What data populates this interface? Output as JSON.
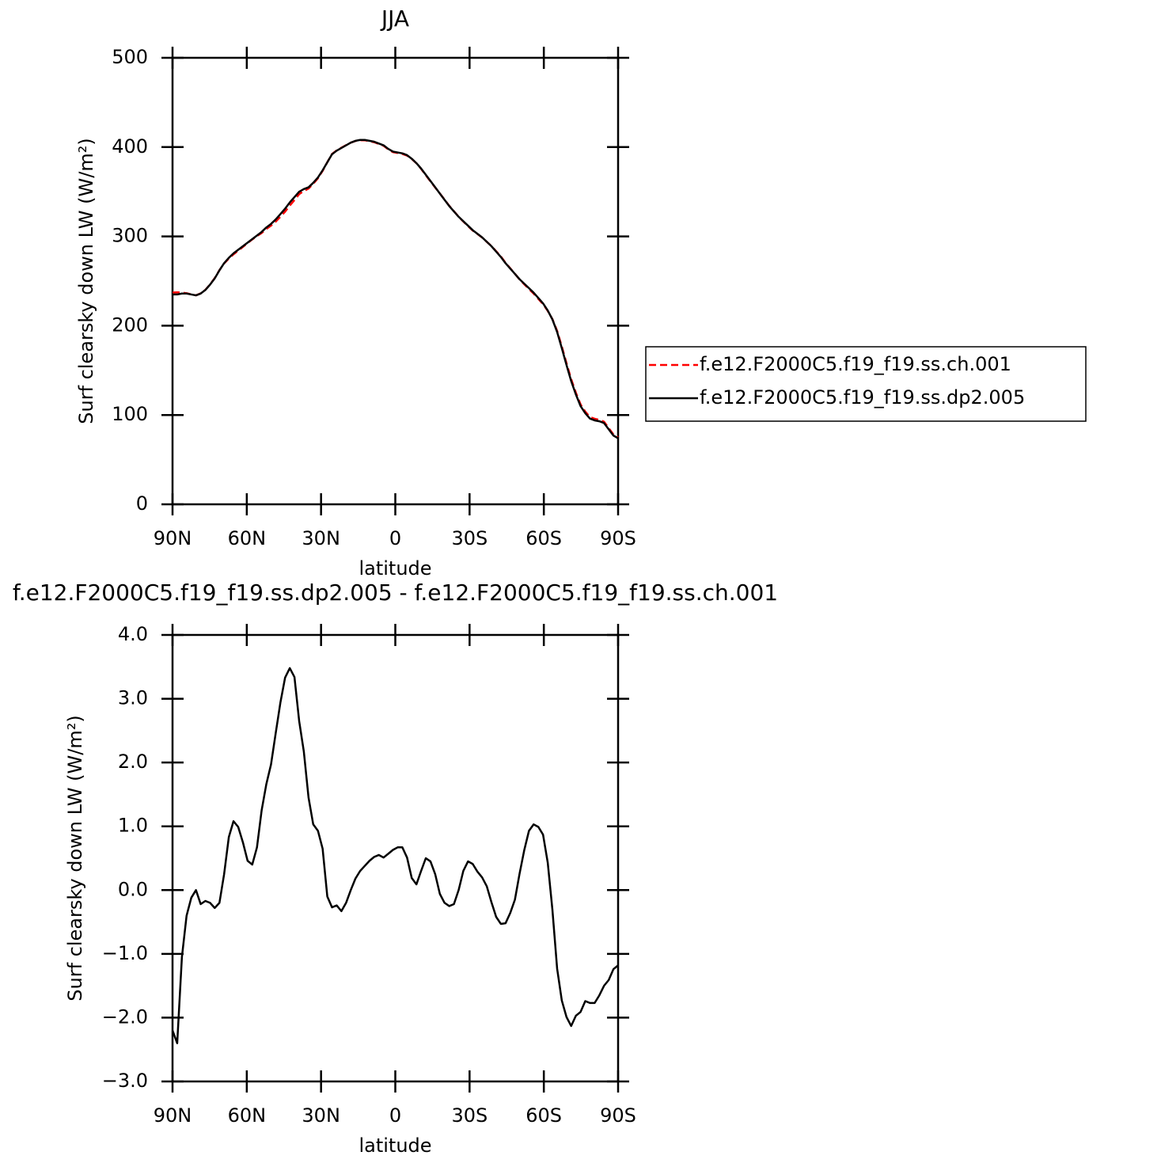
{
  "chart_data": [
    {
      "type": "line",
      "title": "JJA",
      "xlabel": "latitude",
      "ylabel": "Surf clearsky down LW (W/m²)",
      "xlim": [
        90,
        -90
      ],
      "xticks": [
        {
          "value": 90,
          "label": "90N"
        },
        {
          "value": 60,
          "label": "60N"
        },
        {
          "value": 30,
          "label": "30N"
        },
        0,
        {
          "value": -30,
          "label": "30S"
        },
        {
          "value": -60,
          "label": "60S"
        },
        {
          "value": -90,
          "label": "90S"
        }
      ],
      "ylim": [
        0,
        500
      ],
      "yticks": [
        0,
        100,
        200,
        300,
        400,
        500
      ],
      "legend": "right",
      "x": [
        90,
        88.11,
        86.21,
        84.32,
        82.42,
        80.53,
        78.63,
        76.74,
        74.84,
        72.95,
        71.05,
        69.16,
        67.26,
        65.37,
        63.47,
        61.58,
        59.68,
        57.79,
        55.89,
        54.0,
        52.11,
        50.21,
        48.32,
        46.42,
        44.53,
        42.63,
        40.74,
        38.84,
        36.95,
        35.05,
        33.16,
        31.26,
        29.37,
        27.47,
        25.58,
        23.68,
        21.79,
        19.89,
        18.0,
        16.11,
        14.21,
        12.32,
        10.42,
        8.53,
        6.63,
        4.74,
        2.84,
        0.95,
        -0.95,
        -2.84,
        -4.74,
        -6.63,
        -8.53,
        -10.42,
        -12.32,
        -14.21,
        -16.11,
        -18.0,
        -19.89,
        -21.79,
        -23.68,
        -25.58,
        -27.47,
        -29.37,
        -31.26,
        -33.16,
        -35.05,
        -36.95,
        -38.84,
        -40.74,
        -42.63,
        -44.53,
        -46.42,
        -48.32,
        -50.21,
        -52.11,
        -54.0,
        -55.89,
        -57.79,
        -59.68,
        -61.58,
        -63.47,
        -65.37,
        -67.26,
        -69.16,
        -71.05,
        -72.95,
        -74.84,
        -76.74,
        -78.63,
        -80.53,
        -82.42,
        -84.32,
        -86.21,
        -88.11,
        -90
      ],
      "series": [
        {
          "name": "f.e12.F2000C5.f19_f19.ss.ch.001",
          "color": "#ff0000",
          "dash": true,
          "values": [
            237.2,
            237.4,
            237.05,
            236.4,
            235.12,
            234,
            236.22,
            240.17,
            246.2,
            253.28,
            262.2,
            269.75,
            275.17,
            279.92,
            284.01,
            288.25,
            292.54,
            296.6,
            300.33,
            303.75,
            308.34,
            312.03,
            316.54,
            322.06,
            327.67,
            334.52,
            340.66,
            347.35,
            350.83,
            353.55,
            358.97,
            365.07,
            373.35,
            383.1,
            392.27,
            396.24,
            399.33,
            402.2,
            405,
            406.82,
            407.7,
            407.62,
            406.54,
            405.48,
            403.45,
            401.49,
            397.43,
            394.37,
            393.33,
            392.33,
            390.49,
            386.81,
            381.91,
            375.7,
            368.5,
            361.55,
            354.75,
            348.06,
            341.2,
            334.25,
            328.22,
            322,
            316.7,
            311.55,
            306.59,
            302.71,
            298.8,
            293.94,
            289.19,
            283.42,
            277.53,
            270.52,
            264.36,
            258.15,
            251.74,
            246.37,
            241.07,
            235.97,
            230.01,
            224.13,
            216.57,
            207.31,
            194.23,
            176.73,
            157.99,
            140.13,
            124.97,
            111.91,
            103.74,
            97.77,
            95.77,
            94.65,
            92.5,
            85.41,
            78.24,
            75.18
          ]
        },
        {
          "name": "f.e12.F2000C5.f19_f19.ss.dp2.005",
          "color": "#000000",
          "dash": false,
          "values": [
            235,
            235,
            236,
            236,
            235,
            234,
            236,
            240,
            246,
            253,
            262,
            270,
            276,
            281,
            285,
            289,
            293,
            297,
            301,
            305,
            310,
            314,
            319,
            325,
            331,
            338,
            344,
            350,
            353,
            355,
            360,
            366,
            374,
            383,
            392,
            396,
            399,
            402,
            405,
            407,
            408,
            408,
            407,
            406,
            404,
            402,
            398,
            395,
            394,
            393,
            391,
            387,
            382,
            376,
            369,
            362,
            355,
            348,
            341,
            334,
            328,
            322,
            317,
            312,
            307,
            303,
            299,
            294,
            289,
            283,
            277,
            270,
            264,
            258,
            252,
            247,
            242,
            237,
            231,
            225,
            217,
            207,
            193,
            175,
            156,
            138,
            123,
            110,
            102,
            96,
            94,
            93,
            91,
            84,
            77,
            74
          ]
        }
      ]
    },
    {
      "type": "line",
      "title": "f.e12.F2000C5.f19_f19.ss.dp2.005 - f.e12.F2000C5.f19_f19.ss.ch.001",
      "xlabel": "latitude",
      "ylabel": "Surf clearsky down LW (W/m²)",
      "xlim": [
        90,
        -90
      ],
      "xticks": [
        {
          "value": 90,
          "label": "90N"
        },
        {
          "value": 60,
          "label": "60N"
        },
        {
          "value": 30,
          "label": "30N"
        },
        0,
        {
          "value": -30,
          "label": "30S"
        },
        {
          "value": -60,
          "label": "60S"
        },
        {
          "value": -90,
          "label": "90S"
        }
      ],
      "ylim": [
        -3,
        4
      ],
      "yticks": [
        {
          "value": -3,
          "label": "−3.0"
        },
        {
          "value": -2,
          "label": "−2.0"
        },
        {
          "value": -1,
          "label": "−1.0"
        },
        {
          "value": 0,
          "label": "0.0"
        },
        {
          "value": 1,
          "label": "1.0"
        },
        {
          "value": 2,
          "label": "2.0"
        },
        {
          "value": 3,
          "label": "3.0"
        },
        {
          "value": 4,
          "label": "4.0"
        }
      ],
      "x": [
        90,
        88.11,
        86.21,
        84.32,
        82.42,
        80.53,
        78.63,
        76.74,
        74.84,
        72.95,
        71.05,
        69.16,
        67.26,
        65.37,
        63.47,
        61.58,
        59.68,
        57.79,
        55.89,
        54.0,
        52.11,
        50.21,
        48.32,
        46.42,
        44.53,
        42.63,
        40.74,
        38.84,
        36.95,
        35.05,
        33.16,
        31.26,
        29.37,
        27.47,
        25.58,
        23.68,
        21.79,
        19.89,
        18.0,
        16.11,
        14.21,
        12.32,
        10.42,
        8.53,
        6.63,
        4.74,
        2.84,
        0.95,
        -0.95,
        -2.84,
        -4.74,
        -6.63,
        -8.53,
        -10.42,
        -12.32,
        -14.21,
        -16.11,
        -18.0,
        -19.89,
        -21.79,
        -23.68,
        -25.58,
        -27.47,
        -29.37,
        -31.26,
        -33.16,
        -35.05,
        -36.95,
        -38.84,
        -40.74,
        -42.63,
        -44.53,
        -46.42,
        -48.32,
        -50.21,
        -52.11,
        -54.0,
        -55.89,
        -57.79,
        -59.68,
        -61.58,
        -63.47,
        -65.37,
        -67.26,
        -69.16,
        -71.05,
        -72.95,
        -74.84,
        -76.74,
        -78.63,
        -80.53,
        -82.42,
        -84.32,
        -86.21,
        -88.11,
        -90
      ],
      "color": "#000000",
      "values": [
        -2.2,
        -2.4,
        -1.05,
        -0.4,
        -0.12,
        0.0,
        -0.22,
        -0.17,
        -0.2,
        -0.28,
        -0.2,
        0.25,
        0.83,
        1.08,
        0.99,
        0.75,
        0.46,
        0.4,
        0.67,
        1.25,
        1.66,
        1.97,
        2.46,
        2.94,
        3.33,
        3.48,
        3.34,
        2.65,
        2.17,
        1.45,
        1.03,
        0.93,
        0.65,
        -0.1,
        -0.27,
        -0.24,
        -0.33,
        -0.2,
        0.0,
        0.18,
        0.3,
        0.38,
        0.46,
        0.52,
        0.55,
        0.51,
        0.57,
        0.63,
        0.67,
        0.67,
        0.51,
        0.19,
        0.09,
        0.3,
        0.5,
        0.45,
        0.25,
        -0.06,
        -0.2,
        -0.25,
        -0.22,
        0.0,
        0.3,
        0.45,
        0.41,
        0.29,
        0.2,
        0.06,
        -0.19,
        -0.42,
        -0.53,
        -0.52,
        -0.36,
        -0.15,
        0.26,
        0.63,
        0.93,
        1.03,
        0.99,
        0.87,
        0.43,
        -0.31,
        -1.23,
        -1.73,
        -1.99,
        -2.13,
        -1.97,
        -1.91,
        -1.74,
        -1.77,
        -1.77,
        -1.65,
        -1.5,
        -1.41,
        -1.24,
        -1.18
      ]
    }
  ]
}
